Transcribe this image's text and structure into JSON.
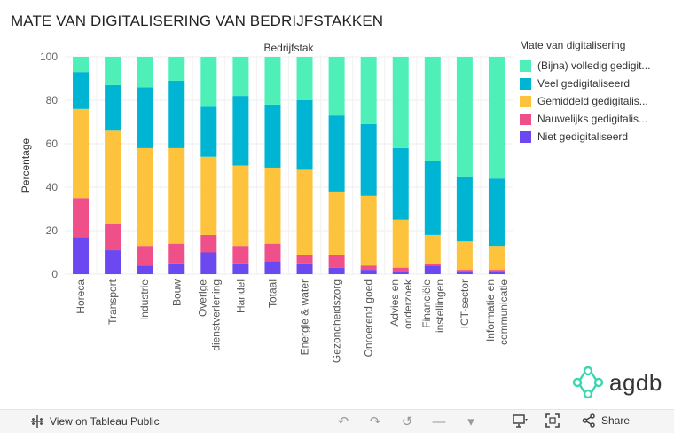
{
  "title": "MATE VAN DIGITALISERING VAN BEDRIJFSTAKKEN",
  "chart_data": {
    "type": "stacked-bar",
    "column_header": "Bedrijfstak",
    "ylabel": "Percentage",
    "ylim": [
      0,
      100
    ],
    "yticks": [
      0,
      20,
      40,
      60,
      80,
      100
    ],
    "categories": [
      "Horeca",
      "Transport",
      "Industrie",
      "Bouw",
      "Overige dienstverlening",
      "Handel",
      "Totaal",
      "Energie & water",
      "Gezondheidszorg",
      "Onroerend goed",
      "Advies en onderzoek",
      "Financiële instellingen",
      "ICT-sector",
      "Informatie en communicatie"
    ],
    "category_lines": [
      [
        "Horeca"
      ],
      [
        "Transport"
      ],
      [
        "Industrie"
      ],
      [
        "Bouw"
      ],
      [
        "Overige",
        "dienstverlening"
      ],
      [
        "Handel"
      ],
      [
        "Totaal"
      ],
      [
        "Energie & water"
      ],
      [
        "Gezondheidszorg"
      ],
      [
        "Onroerend goed"
      ],
      [
        "Advies en",
        "onderzoek"
      ],
      [
        "Financiële",
        "instellingen"
      ],
      [
        "ICT-sector"
      ],
      [
        "Informatie en",
        "communicatie"
      ]
    ],
    "series": [
      {
        "name": "Niet gedigitaliseerd",
        "color": "#6b48ef",
        "values": [
          17,
          11,
          4,
          5,
          10,
          5,
          6,
          5,
          3,
          2,
          1,
          4,
          1,
          1
        ]
      },
      {
        "name": "Nauwelijks gedigitaliseerd",
        "color": "#f0508a",
        "values": [
          18,
          12,
          9,
          9,
          8,
          8,
          8,
          4,
          6,
          2,
          2,
          1,
          1,
          1
        ]
      },
      {
        "name": "Gemiddeld gedigitaliseerd",
        "color": "#fdc33d",
        "values": [
          41,
          43,
          45,
          44,
          36,
          37,
          35,
          39,
          29,
          32,
          22,
          13,
          13,
          11
        ]
      },
      {
        "name": "Veel gedigitaliseerd",
        "color": "#00b5d3",
        "values": [
          17,
          21,
          28,
          31,
          23,
          32,
          29,
          32,
          35,
          33,
          33,
          34,
          30,
          31
        ]
      },
      {
        "name": "(Bijna) volledig gedigitaliseerd",
        "color": "#4ef0b8",
        "values": [
          7,
          13,
          14,
          11,
          23,
          18,
          22,
          20,
          27,
          31,
          42,
          48,
          55,
          56
        ]
      }
    ]
  },
  "legend": {
    "title": "Mate van digitalisering",
    "items": [
      {
        "label": "(Bijna) volledig gedigit...",
        "color": "#4ef0b8"
      },
      {
        "label": "Veel gedigitaliseerd",
        "color": "#00b5d3"
      },
      {
        "label": "Gemiddeld gedigitalis...",
        "color": "#fdc33d"
      },
      {
        "label": "Nauwelijks gedigitalis...",
        "color": "#f0508a"
      },
      {
        "label": "Niet gedigitaliseerd",
        "color": "#6b48ef"
      }
    ]
  },
  "logo": {
    "text": "agdb",
    "color": "#3ad6b0"
  },
  "toolbar": {
    "view_label": "View on Tableau Public",
    "share_label": "Share"
  }
}
